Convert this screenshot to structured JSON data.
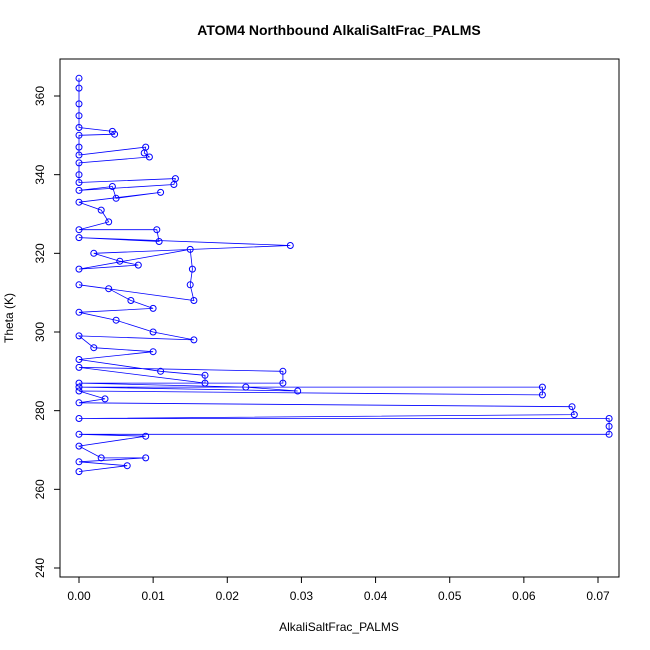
{
  "chart_data": {
    "type": "scatter",
    "title": "ATOM4 Northbound AlkaliSaltFrac_PALMS",
    "xlabel": "AlkaliSaltFrac_PALMS",
    "ylabel": "Theta (K)",
    "xlim": [
      0,
      0.0715
    ],
    "ylim": [
      240,
      368
    ],
    "xticks": [
      0.0,
      0.01,
      0.02,
      0.03,
      0.04,
      0.05,
      0.06,
      0.07
    ],
    "xtick_labels": [
      "0.00",
      "0.01",
      "0.02",
      "0.03",
      "0.04",
      "0.05",
      "0.06",
      "0.07"
    ],
    "yticks": [
      240,
      260,
      280,
      300,
      320,
      340,
      360
    ],
    "ytick_labels": [
      "240",
      "260",
      "280",
      "300",
      "320",
      "340",
      "360"
    ],
    "grid": false,
    "marker": "open-circle",
    "connected": true,
    "color": "#0000ff",
    "series": [
      {
        "points": [
          [
            0.0,
            364.5
          ],
          [
            0.0,
            362.0
          ],
          [
            0.0,
            358.0
          ],
          [
            0.0,
            355.0
          ],
          [
            0.0,
            352.0
          ],
          [
            0.0045,
            351.0
          ],
          [
            0.0048,
            350.3
          ],
          [
            0.0,
            350.0
          ],
          [
            0.0,
            347.0
          ],
          [
            0.0,
            345.0
          ],
          [
            0.009,
            347.0
          ],
          [
            0.0088,
            345.5
          ],
          [
            0.0095,
            344.5
          ],
          [
            0.0,
            343.0
          ],
          [
            0.0,
            340.0
          ],
          [
            0.0,
            338.0
          ],
          [
            0.013,
            339.0
          ],
          [
            0.0128,
            337.5
          ],
          [
            0.0,
            336.0
          ],
          [
            0.0045,
            337.0
          ],
          [
            0.005,
            334.0
          ],
          [
            0.011,
            335.5
          ],
          [
            0.0,
            333.0
          ],
          [
            0.003,
            331.0
          ],
          [
            0.004,
            328.0
          ],
          [
            0.0,
            326.0
          ],
          [
            0.0105,
            326.0
          ],
          [
            0.0108,
            323.0
          ],
          [
            0.0,
            324.0
          ],
          [
            0.0285,
            322.0
          ],
          [
            0.002,
            320.0
          ],
          [
            0.0055,
            318.0
          ],
          [
            0.008,
            317.0
          ],
          [
            0.0,
            316.0
          ],
          [
            0.015,
            321.0
          ],
          [
            0.0153,
            316.0
          ],
          [
            0.015,
            312.0
          ],
          [
            0.0155,
            308.0
          ],
          [
            0.0,
            312.0
          ],
          [
            0.004,
            311.0
          ],
          [
            0.007,
            308.0
          ],
          [
            0.01,
            306.0
          ],
          [
            0.0,
            305.0
          ],
          [
            0.005,
            303.0
          ],
          [
            0.01,
            300.0
          ],
          [
            0.0155,
            298.0
          ],
          [
            0.0,
            299.0
          ],
          [
            0.002,
            296.0
          ],
          [
            0.01,
            295.0
          ],
          [
            0.0,
            293.0
          ],
          [
            0.011,
            290.0
          ],
          [
            0.017,
            289.0
          ],
          [
            0.017,
            287.0
          ],
          [
            0.0,
            291.0
          ],
          [
            0.0275,
            290.0
          ],
          [
            0.0275,
            287.0
          ],
          [
            0.0,
            287.0
          ],
          [
            0.0225,
            286.0
          ],
          [
            0.0295,
            285.0
          ],
          [
            0.0,
            286.0
          ],
          [
            0.0625,
            286.0
          ],
          [
            0.0625,
            284.0
          ],
          [
            0.0,
            285.0
          ],
          [
            0.0035,
            283.0
          ],
          [
            0.0,
            282.0
          ],
          [
            0.0665,
            281.0
          ],
          [
            0.0668,
            279.0
          ],
          [
            0.0,
            278.0
          ],
          [
            0.0715,
            278.0
          ],
          [
            0.0715,
            276.0
          ],
          [
            0.0715,
            274.0
          ],
          [
            0.0,
            274.0
          ],
          [
            0.009,
            273.5
          ],
          [
            0.0,
            271.0
          ],
          [
            0.003,
            268.0
          ],
          [
            0.009,
            268.0
          ],
          [
            0.0,
            267.0
          ],
          [
            0.0065,
            266.0
          ],
          [
            0.0,
            264.5
          ]
        ]
      }
    ]
  }
}
